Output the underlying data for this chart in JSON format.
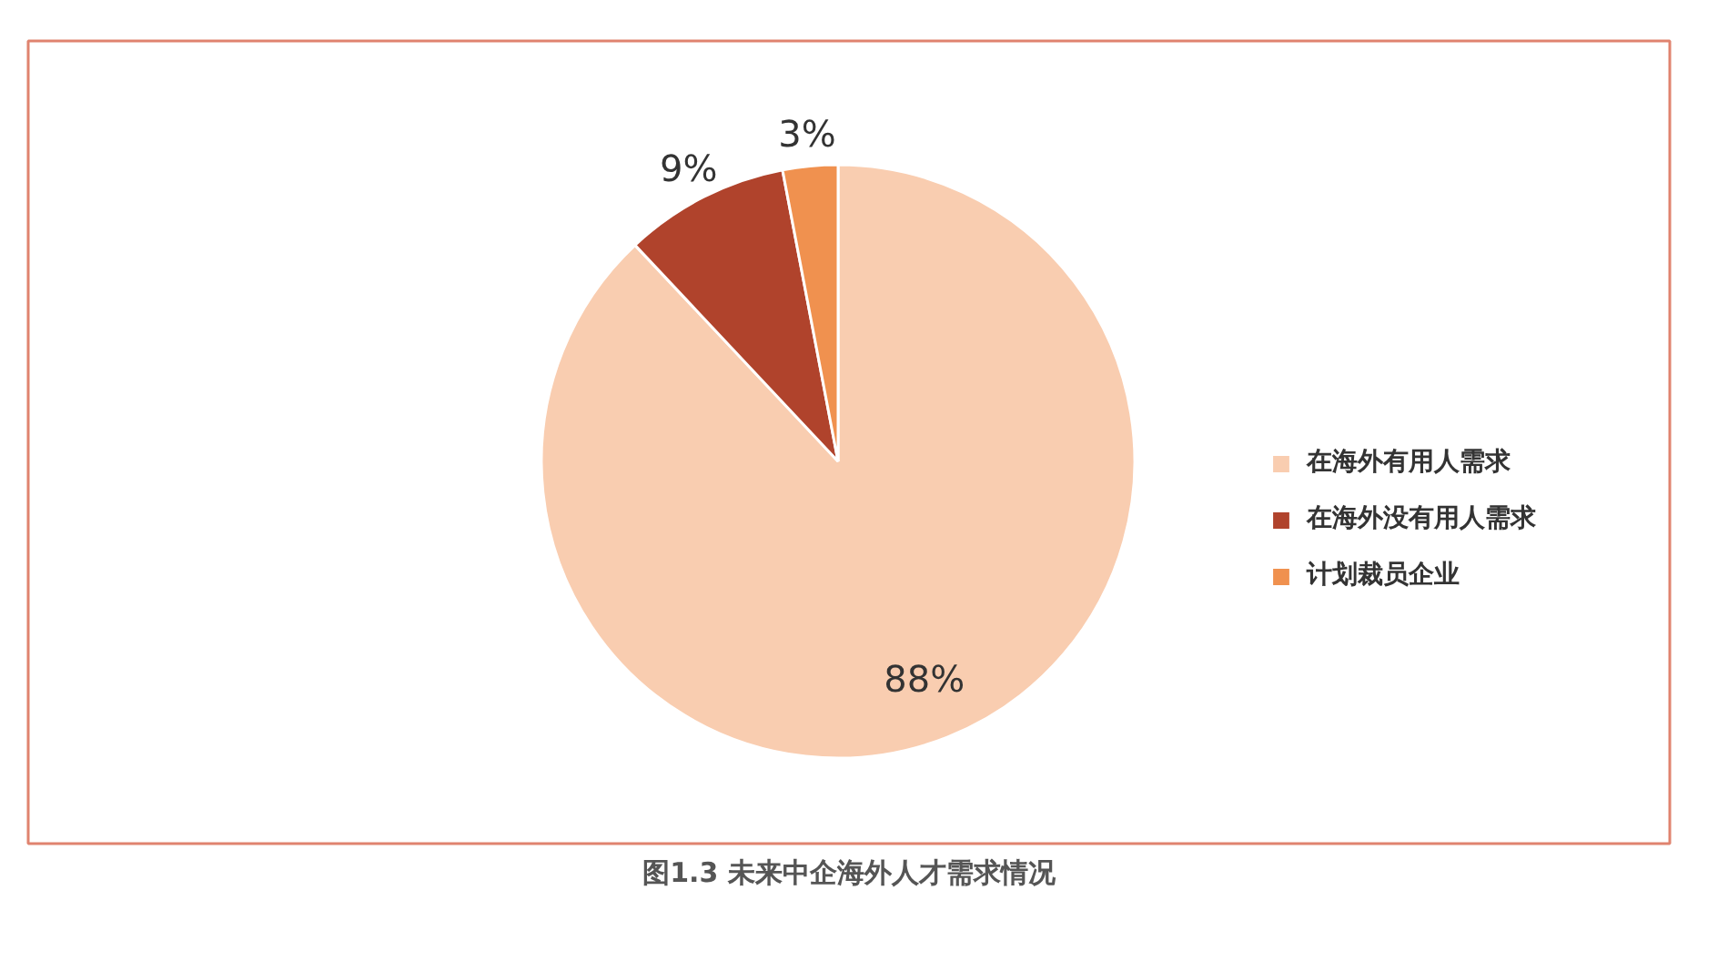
{
  "chart_data": {
    "type": "pie",
    "categories": [
      "在海外有用人需求",
      "在海外没有用人需求",
      "计划裁员企业"
    ],
    "values": [
      88,
      9,
      3
    ],
    "colors": [
      "#f9cdb0",
      "#b0432c",
      "#f0914f"
    ],
    "value_labels": [
      "88%",
      "9%",
      "3%"
    ],
    "legend": "right",
    "annotations": [
      "图1.3 未来中企海外人才需求情况"
    ]
  }
}
